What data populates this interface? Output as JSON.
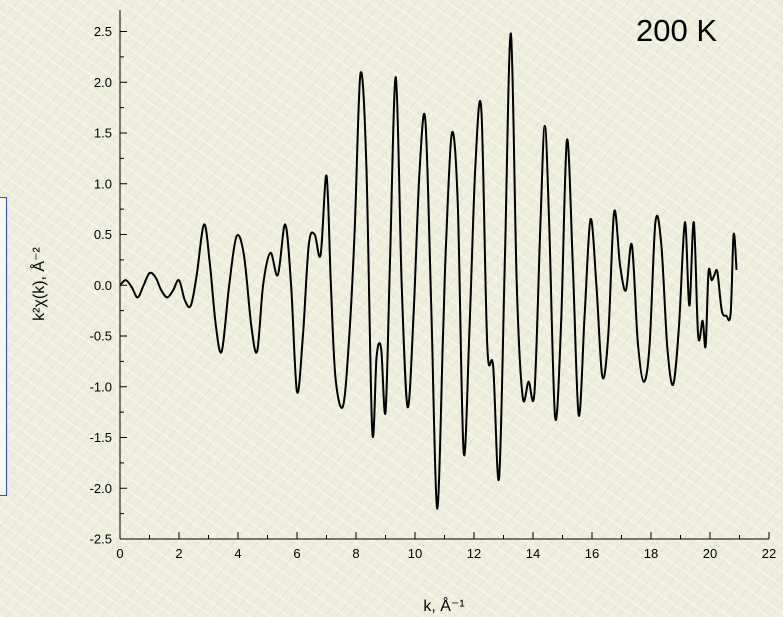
{
  "chart_data": {
    "type": "line",
    "annotation": "200 K",
    "xlabel": "k, Å⁻¹",
    "ylabel": "k²χ(k), Å⁻²",
    "xlim": [
      0,
      22
    ],
    "ylim": [
      -2.5,
      2.6
    ],
    "x_ticks": [
      "0",
      "2",
      "4",
      "6",
      "8",
      "10",
      "12",
      "14",
      "16",
      "18",
      "20",
      "22"
    ],
    "y_ticks": [
      "2.5",
      "2.0",
      "1.5",
      "1.0",
      "0.5",
      "0.0",
      "-0.5",
      "-1.0",
      "-1.5",
      "-2.0",
      "-2.5"
    ],
    "grid": false,
    "legend": "none",
    "line_color": "#000000",
    "series": [
      {
        "x": [
          0.0,
          0.2,
          0.4,
          0.6,
          0.8,
          1.0,
          1.2,
          1.4,
          1.6,
          1.8,
          2.0,
          2.2,
          2.4,
          2.6,
          2.85,
          3.05,
          3.25,
          3.45,
          3.7,
          3.95,
          4.2,
          4.45,
          4.65,
          4.85,
          5.1,
          5.35,
          5.6,
          5.8,
          6.0,
          6.2,
          6.4,
          6.6,
          6.8,
          7.0,
          7.15,
          7.3,
          7.55,
          7.75,
          7.95,
          8.15,
          8.35,
          8.55,
          8.7,
          8.85,
          9.0,
          9.15,
          9.35,
          9.55,
          9.75,
          9.95,
          10.15,
          10.35,
          10.55,
          10.75,
          10.95,
          11.05,
          11.25,
          11.45,
          11.65,
          11.85,
          12.05,
          12.25,
          12.45,
          12.65,
          12.85,
          13.05,
          13.25,
          13.45,
          13.65,
          13.85,
          14.05,
          14.25,
          14.4,
          14.55,
          14.75,
          14.95,
          15.15,
          15.35,
          15.55,
          15.75,
          15.95,
          16.15,
          16.35,
          16.55,
          16.75,
          16.95,
          17.15,
          17.35,
          17.55,
          17.75,
          17.95,
          18.15,
          18.35,
          18.55,
          18.75,
          18.95,
          19.15,
          19.3,
          19.45,
          19.6,
          19.75,
          19.85,
          19.95,
          20.05,
          20.15,
          20.25,
          20.4,
          20.55,
          20.7,
          20.8,
          20.9
        ],
        "y": [
          0.0,
          0.05,
          -0.02,
          -0.12,
          0.0,
          0.12,
          0.08,
          -0.05,
          -0.12,
          -0.05,
          0.05,
          -0.15,
          -0.2,
          0.1,
          0.6,
          0.2,
          -0.4,
          -0.65,
          0.0,
          0.48,
          0.3,
          -0.4,
          -0.65,
          0.0,
          0.32,
          0.1,
          0.6,
          0.0,
          -1.05,
          -0.5,
          0.4,
          0.5,
          0.3,
          1.08,
          0.0,
          -0.9,
          -1.2,
          -0.6,
          0.5,
          2.08,
          1.2,
          -1.43,
          -0.7,
          -0.62,
          -1.25,
          0.2,
          2.05,
          0.0,
          -1.2,
          -0.3,
          1.1,
          1.63,
          -0.2,
          -2.2,
          -0.5,
          0.4,
          1.5,
          0.8,
          -1.65,
          -0.4,
          1.2,
          1.72,
          -0.6,
          -0.8,
          -1.9,
          0.3,
          2.48,
          0.0,
          -1.1,
          -0.95,
          -1.05,
          0.6,
          1.57,
          0.6,
          -1.3,
          -0.4,
          1.43,
          0.2,
          -1.28,
          -0.3,
          0.65,
          0.0,
          -0.9,
          -0.5,
          0.72,
          0.2,
          -0.05,
          0.4,
          -0.55,
          -0.95,
          -0.6,
          0.62,
          0.4,
          -0.6,
          -0.98,
          -0.4,
          0.62,
          -0.2,
          0.62,
          -0.5,
          -0.35,
          -0.6,
          0.13,
          0.05,
          0.1,
          0.13,
          -0.25,
          -0.3,
          -0.28,
          0.5,
          0.15
        ]
      }
    ]
  }
}
